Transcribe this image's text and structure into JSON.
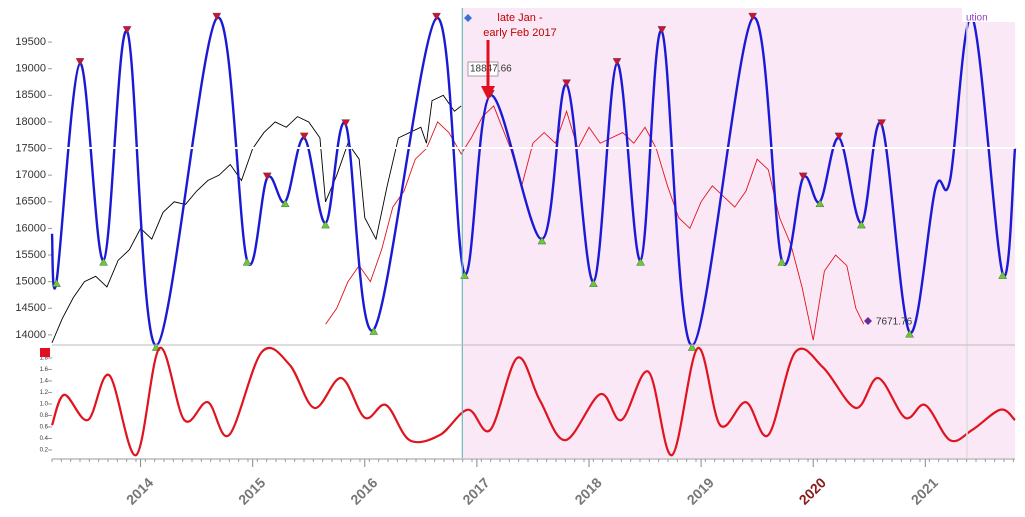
{
  "chart_data": [
    {
      "type": "line",
      "xlim": [
        2013.21,
        2021.8
      ],
      "ylim": [
        13810,
        20140
      ],
      "yticks": [
        14000,
        14500,
        15000,
        15500,
        16000,
        16500,
        17000,
        17500,
        18000,
        18500,
        19000,
        19500
      ],
      "xticks": [
        2014,
        2015,
        2016,
        2017,
        2018,
        2019,
        2020,
        2021
      ],
      "xtick_highlight": 2020,
      "highlight_color": "#8b1a1a",
      "forecast_start": 2016.87,
      "forecast_color": "#fbe8f6",
      "now_line_color": "#6fb8b8",
      "series": [
        {
          "color": "#000000",
          "smooth": false,
          "x": [
            2013.21,
            2013.3,
            2013.4,
            2013.5,
            2013.6,
            2013.7,
            2013.8,
            2013.9,
            2014.0,
            2014.1,
            2014.2,
            2014.3,
            2014.4,
            2014.5,
            2014.6,
            2014.7,
            2014.8,
            2014.9,
            2015.0,
            2015.1,
            2015.2,
            2015.3,
            2015.4,
            2015.5,
            2015.6,
            2015.65,
            2015.75,
            2015.85,
            2015.95,
            2016.0,
            2016.05,
            2016.1,
            2016.2,
            2016.3,
            2016.4,
            2016.5,
            2016.55,
            2016.6,
            2016.7,
            2016.8,
            2016.86
          ],
          "values": [
            13850,
            14300,
            14700,
            15000,
            15100,
            14900,
            15400,
            15600,
            16000,
            15800,
            16300,
            16500,
            16450,
            16700,
            16900,
            17000,
            17200,
            16900,
            17500,
            17800,
            18000,
            17900,
            18100,
            18000,
            17700,
            16500,
            17000,
            17600,
            17300,
            16200,
            16000,
            15800,
            16800,
            17700,
            17800,
            17900,
            17600,
            18400,
            18500,
            18200,
            18300
          ]
        },
        {
          "color": "#e0141e",
          "smooth": false,
          "x": [
            2015.65,
            2015.75,
            2015.85,
            2015.95,
            2016.05,
            2016.15,
            2016.25,
            2016.35,
            2016.45,
            2016.55,
            2016.65,
            2016.75,
            2016.86,
            2016.95,
            2017.05,
            2017.15,
            2017.3,
            2017.4,
            2017.5,
            2017.6,
            2017.7,
            2017.8,
            2017.9,
            2018.0,
            2018.1,
            2018.2,
            2018.3,
            2018.4,
            2018.5,
            2018.6,
            2018.7,
            2018.8,
            2018.9,
            2019.0,
            2019.1,
            2019.2,
            2019.3,
            2019.4,
            2019.5,
            2019.6,
            2019.7,
            2019.8,
            2019.9,
            2020.0,
            2020.1,
            2020.2,
            2020.3,
            2020.38,
            2020.45
          ],
          "values": [
            14200,
            14500,
            15000,
            15300,
            15000,
            15600,
            16400,
            16700,
            17300,
            17500,
            18000,
            17800,
            17400,
            17700,
            18100,
            18300,
            17500,
            16800,
            17600,
            17800,
            17600,
            18200,
            17500,
            17900,
            17600,
            17700,
            17800,
            17600,
            17900,
            17500,
            16800,
            16200,
            16000,
            16500,
            16800,
            16600,
            16400,
            16700,
            17300,
            17100,
            16200,
            15700,
            14900,
            13900,
            15200,
            15500,
            15300,
            14500,
            14200
          ]
        },
        {
          "color": "#1a1ad6",
          "smooth": true,
          "markers": true,
          "peak_color": "#d01030",
          "trough_color": "#66cc33",
          "x": [
            2013.21,
            2013.25,
            2013.46,
            2013.67,
            2013.88,
            2014.14,
            2014.68,
            2014.95,
            2015.13,
            2015.29,
            2015.46,
            2015.65,
            2015.83,
            2016.08,
            2016.64,
            2016.89,
            2017.12,
            2017.58,
            2017.8,
            2018.04,
            2018.25,
            2018.46,
            2018.65,
            2018.92,
            2019.46,
            2019.72,
            2019.91,
            2020.06,
            2020.23,
            2020.43,
            2020.61,
            2020.86,
            2021.09,
            2021.22,
            2021.42,
            2021.69,
            2021.8
          ],
          "values": [
            15900,
            15000,
            19100,
            15400,
            19700,
            13800,
            19950,
            15400,
            16950,
            16500,
            17700,
            16100,
            17950,
            14100,
            19950,
            15150,
            18500,
            15800,
            18700,
            15000,
            19100,
            15400,
            19700,
            13800,
            19950,
            15400,
            16950,
            16500,
            17700,
            16100,
            17950,
            14050,
            16750,
            16900,
            19950,
            15150,
            17500
          ]
        }
      ]
    },
    {
      "type": "line",
      "xlim": [
        2013.21,
        2021.8
      ],
      "ylim": [
        0.06,
        1.99
      ],
      "yticks": [
        0.2,
        0.4,
        0.6,
        0.8,
        {
          "value": 1.0,
          "label": "1.0"
        },
        1.2,
        1.4,
        1.6,
        1.8
      ],
      "series": [
        {
          "color": "#e0141e",
          "smooth": true,
          "x": [
            2013.21,
            2013.32,
            2013.53,
            2013.72,
            2013.96,
            2014.17,
            2014.39,
            2014.6,
            2014.79,
            2015.08,
            2015.33,
            2015.55,
            2015.79,
            2016.0,
            2016.19,
            2016.4,
            2016.67,
            2016.92,
            2017.12,
            2017.36,
            2017.56,
            2017.79,
            2018.1,
            2018.29,
            2018.53,
            2018.74,
            2018.97,
            2019.17,
            2019.4,
            2019.6,
            2019.84,
            2020.09,
            2020.38,
            2020.58,
            2020.82,
            2021.0,
            2021.22,
            2021.42,
            2021.67,
            2021.8
          ],
          "values": [
            0.63,
            1.16,
            0.72,
            1.5,
            0.11,
            1.97,
            0.72,
            1.03,
            0.46,
            1.9,
            1.68,
            0.93,
            1.45,
            0.76,
            0.98,
            0.37,
            0.46,
            0.9,
            0.55,
            1.8,
            1.07,
            0.37,
            1.17,
            0.72,
            1.56,
            0.11,
            1.97,
            0.63,
            1.03,
            0.46,
            1.9,
            1.63,
            0.93,
            1.45,
            0.76,
            0.98,
            0.37,
            0.55,
            0.9,
            0.72
          ]
        }
      ]
    }
  ],
  "annotations": {
    "arrow_text_1": "late Jan -",
    "arrow_text_2": "early Feb 2017",
    "price_label": "18847.66",
    "end_label": "7671.76",
    "corner_text": "ution"
  }
}
